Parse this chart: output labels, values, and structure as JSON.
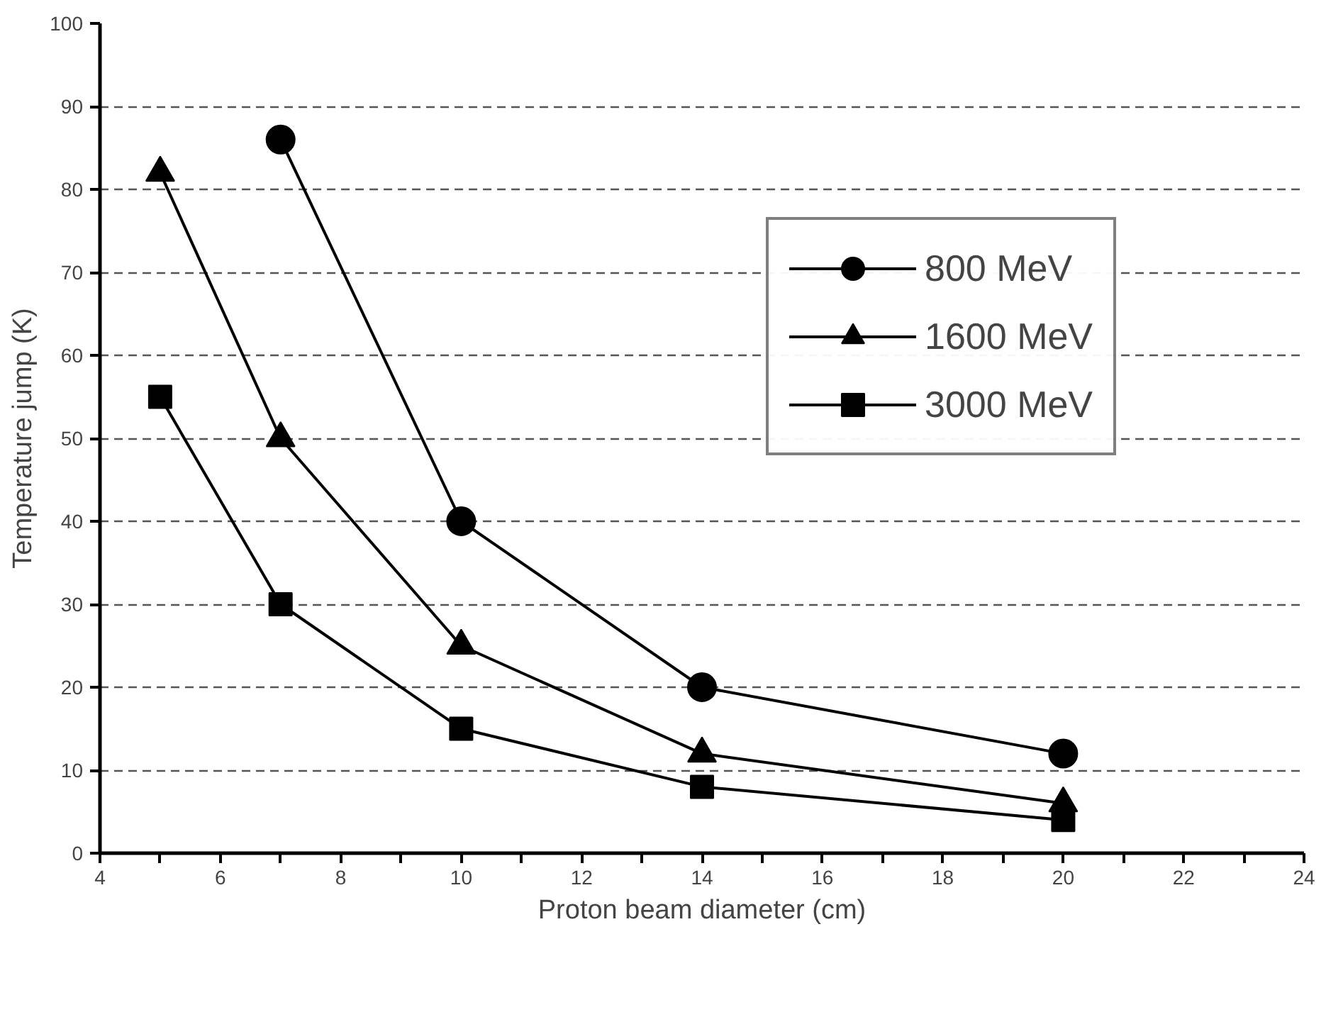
{
  "chart_data": {
    "type": "line",
    "xlabel": "Proton beam diameter (cm)",
    "ylabel": "Temperature jump (K)",
    "x": [
      5,
      7,
      10,
      14,
      20
    ],
    "series": [
      {
        "name": "800 MeV",
        "color": "#000000",
        "marker": "circle",
        "x": [
          7,
          10,
          14,
          20
        ],
        "values": [
          86,
          40,
          20,
          12
        ]
      },
      {
        "name": "1600 MeV",
        "color": "#000000",
        "marker": "triangle",
        "values": [
          82,
          50,
          25,
          12,
          6
        ]
      },
      {
        "name": "3000 MeV",
        "color": "#000000",
        "marker": "square",
        "values": [
          55,
          30,
          15,
          8,
          4
        ]
      }
    ],
    "xlim": [
      4,
      24
    ],
    "xticks": [
      4,
      {
        "value": 5,
        "label": null
      },
      6,
      {
        "value": 7,
        "label": null
      },
      8,
      {
        "value": 9,
        "label": null
      },
      10,
      {
        "value": 11,
        "label": null
      },
      12,
      {
        "value": 13,
        "label": null
      },
      14,
      {
        "value": 15,
        "label": null
      },
      16,
      {
        "value": 17,
        "label": null
      },
      18,
      {
        "value": 19,
        "label": null
      },
      20,
      {
        "value": 21,
        "label": null
      },
      22,
      {
        "value": 23,
        "label": null
      },
      24
    ],
    "ylim": [
      0,
      100
    ],
    "yticks": [
      0,
      10,
      20,
      30,
      40,
      50,
      60,
      70,
      80,
      90,
      100
    ],
    "grid": "y",
    "legend": "top right",
    "line_style": "solid"
  }
}
